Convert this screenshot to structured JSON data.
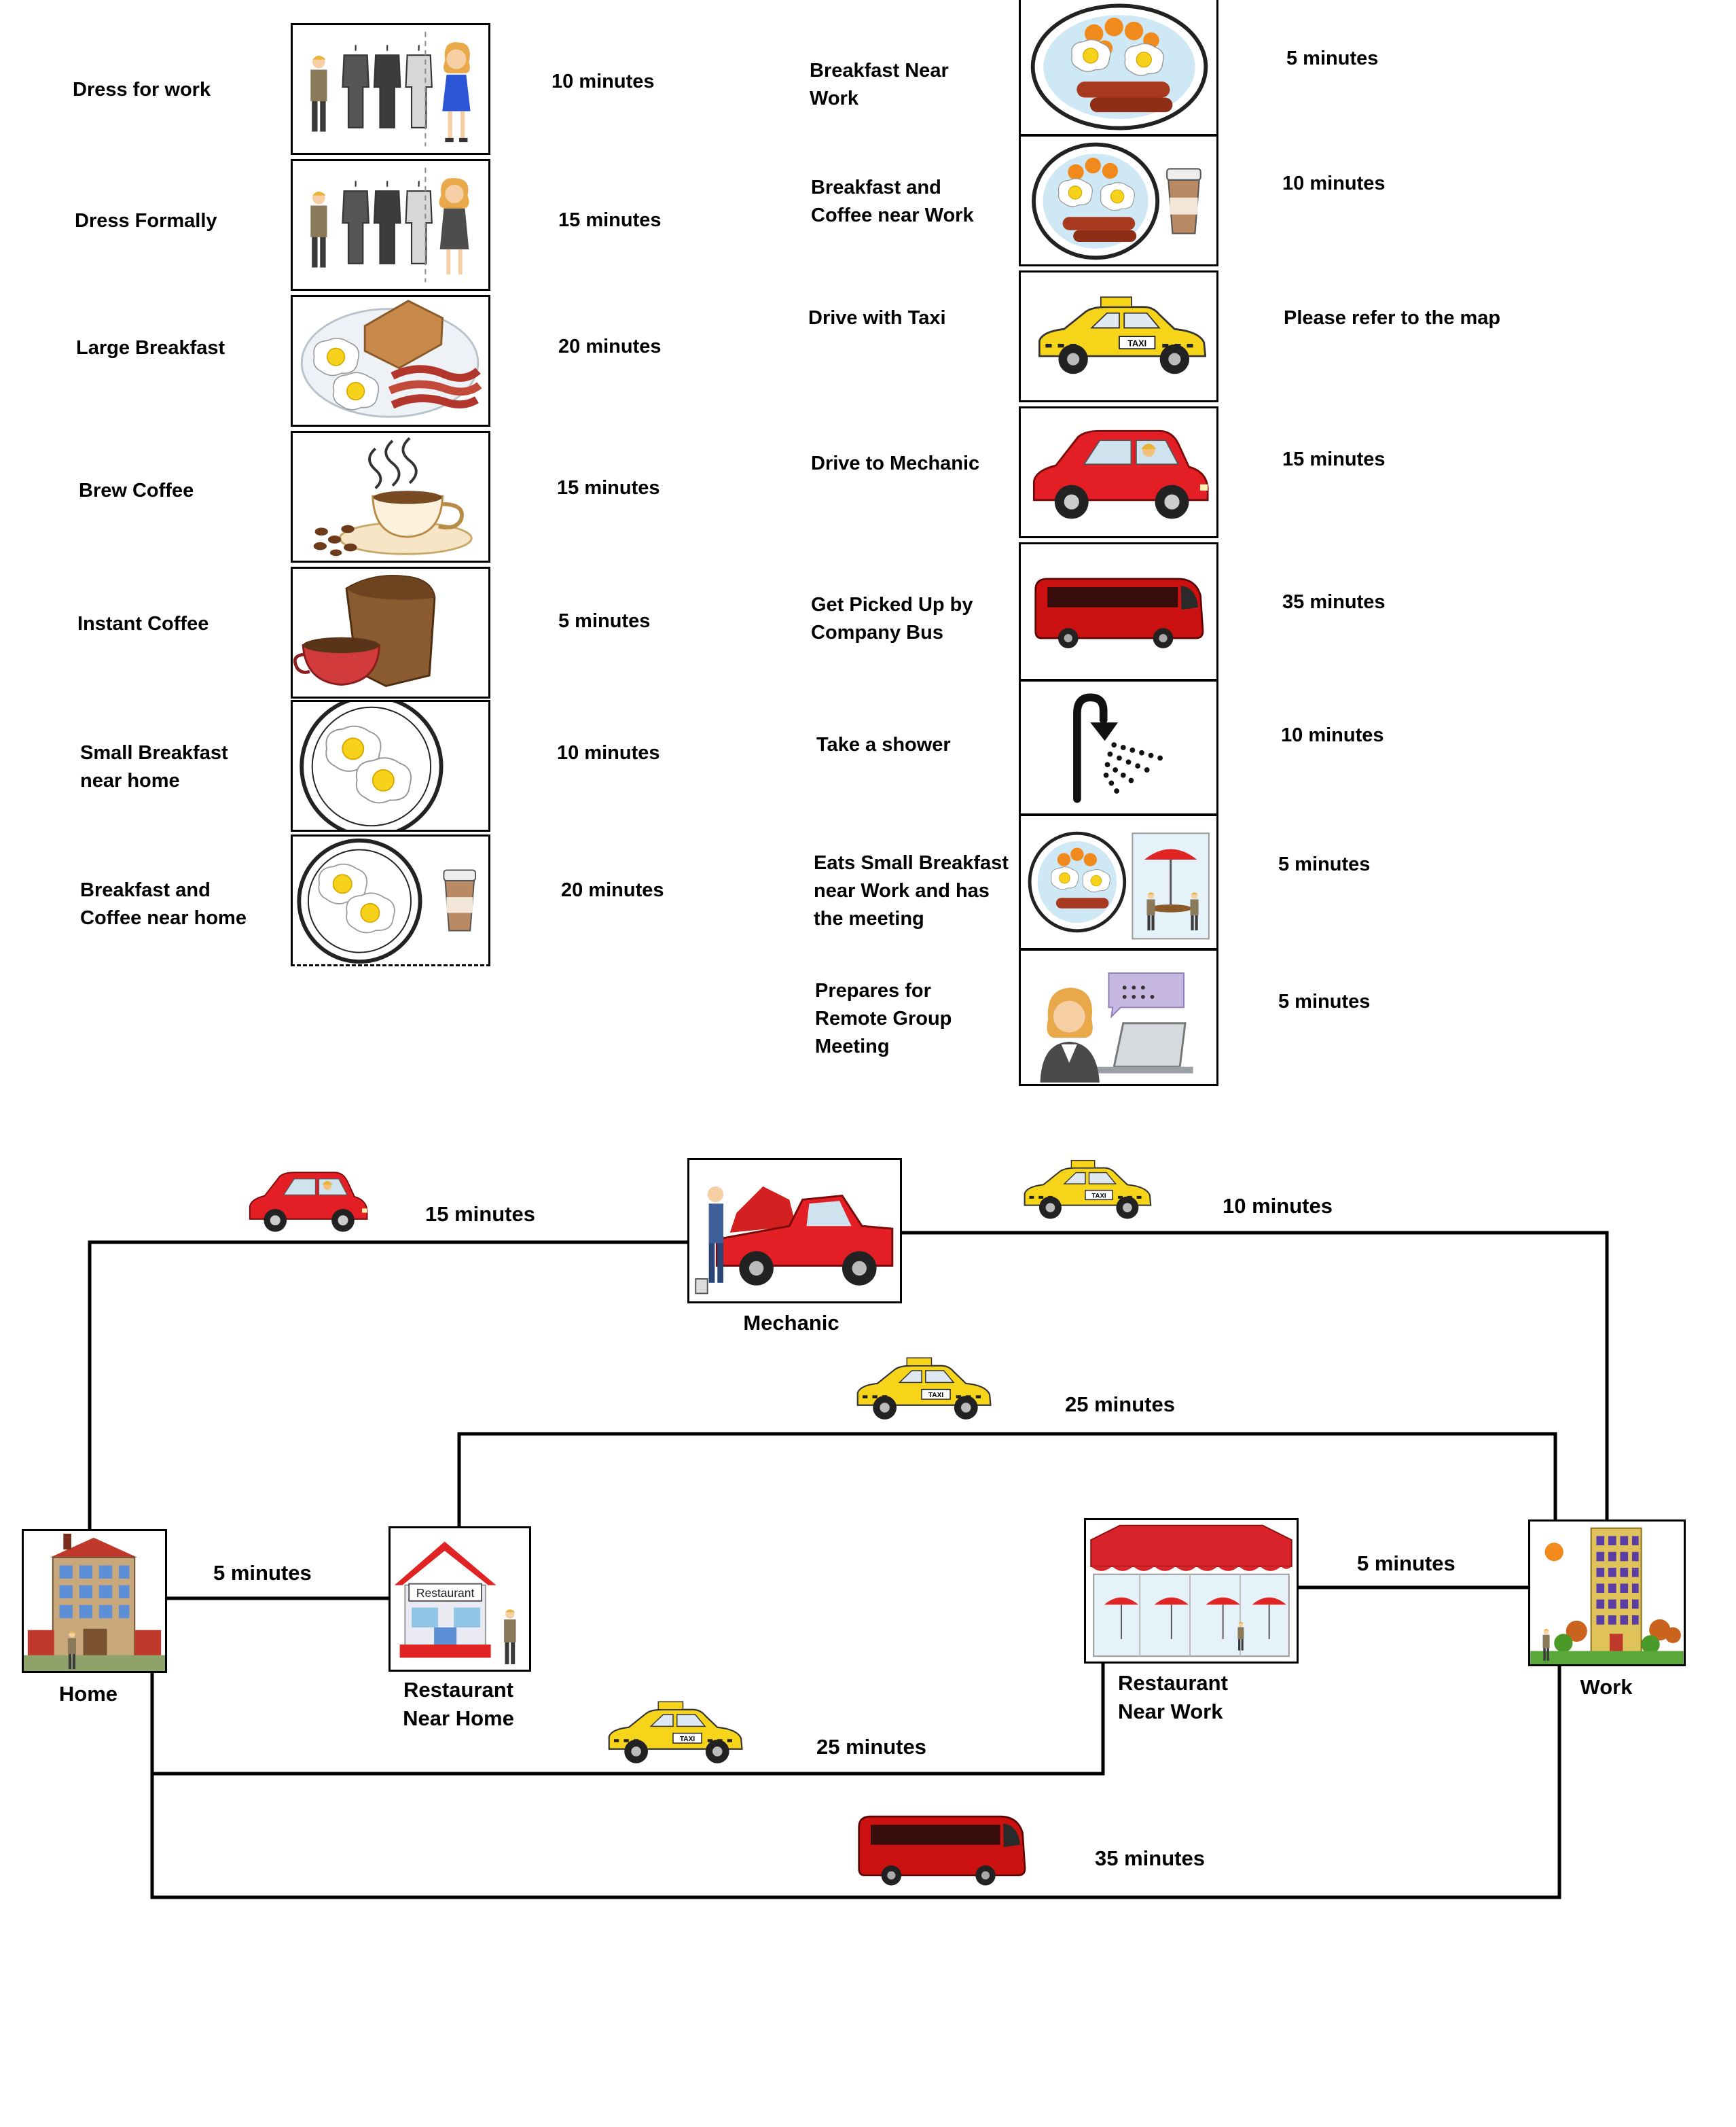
{
  "activities_left": [
    {
      "label": "Dress  for work",
      "duration": "10 minutes",
      "icon": "dress-for-work-icon"
    },
    {
      "label": "Dress  Formally",
      "duration": "15 minutes",
      "icon": "dress-formally-icon"
    },
    {
      "label": "Large Breakfast",
      "duration": "20 minutes",
      "icon": "large-breakfast-icon"
    },
    {
      "label": "Brew  Coffee",
      "duration": "15 minutes",
      "icon": "brew-coffee-icon"
    },
    {
      "label": "Instant Coffee",
      "duration": "5 minutes",
      "icon": "instant-coffee-icon"
    },
    {
      "label": "Small Breakfast\nnear home",
      "duration": "10 minutes",
      "icon": "small-breakfast-icon"
    },
    {
      "label": "Breakfast and\nCoffee near home",
      "duration": "20 minutes",
      "icon": "breakfast-coffee-icon"
    }
  ],
  "activities_right": [
    {
      "label": "Breakfast Near\nWork",
      "duration": "5 minutes",
      "icon": "breakfast-near-work-icon"
    },
    {
      "label": "Breakfast and\nCoffee near Work",
      "duration": "10 minutes",
      "icon": "breakfast-coffee-work-icon"
    },
    {
      "label": "Drive with Taxi",
      "duration": "Please refer to the map",
      "icon": "taxi-icon"
    },
    {
      "label": "Drive to Mechanic",
      "duration": "15 minutes",
      "icon": "red-car-icon"
    },
    {
      "label": "Get Picked Up by\nCompany Bus",
      "duration": "35 minutes",
      "icon": "bus-icon"
    },
    {
      "label": "Take a shower",
      "duration": "10 minutes",
      "icon": "shower-icon"
    },
    {
      "label": "Eats Small Breakfast\nnear Work and has\nthe meeting",
      "duration": "5 minutes",
      "icon": "breakfast-meeting-icon"
    },
    {
      "label": "Prepares for\nRemote Group\nMeeting",
      "duration": "5 minutes",
      "icon": "remote-meeting-icon"
    }
  ],
  "map": {
    "nodes": {
      "home": "Home",
      "restaurant_home": "Restaurant\nNear Home",
      "mechanic": "Mechanic",
      "restaurant_work": "Restaurant\nNear Work",
      "work": "Work"
    },
    "routes": {
      "home_mechanic": "15 minutes",
      "mechanic_work": "10 minutes",
      "restaurant_home_work": "25 minutes",
      "home_restaurant_home": "5 minutes",
      "restaurant_work_work": "5 minutes",
      "home_restaurant_work": "25 minutes",
      "home_work_bus": "35 minutes"
    },
    "restaurant_sign": "Restaurant",
    "taxi_sign": "TAXI"
  },
  "colors": {
    "taxi": "#f6d41a",
    "car": "#e31e24",
    "bus": "#cc1111",
    "roof": "#d9232b"
  }
}
